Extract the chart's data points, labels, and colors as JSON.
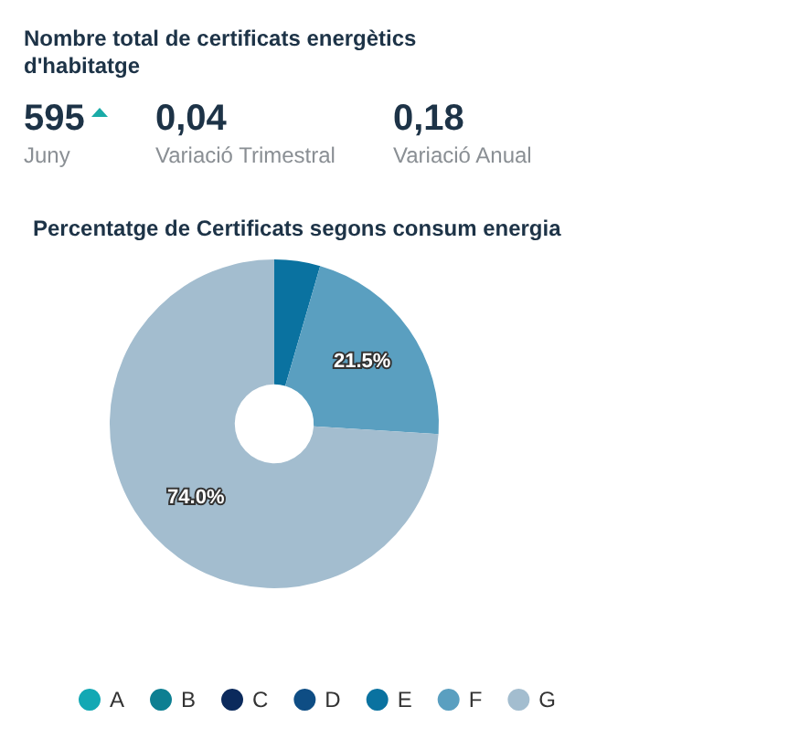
{
  "chart_data": [
    {
      "type": "other",
      "title": "Nombre total de certificats energètics d'habitatge",
      "annotations": [
        "595",
        "Juny",
        "0,04",
        "Variació Trimestral",
        "0,18",
        "Variació Anual"
      ]
    },
    {
      "type": "donut",
      "title": "Percentatge de Certificats segons consum energia",
      "categories": [
        "A",
        "B",
        "C",
        "D",
        "E",
        "F",
        "G"
      ],
      "values": [
        0,
        0,
        0,
        0,
        4.5,
        21.5,
        74.0
      ],
      "colors": [
        "#13a8b4",
        "#0d7f92",
        "#0b2a5c",
        "#0e4d84",
        "#0a72a0",
        "#5a9fc0",
        "#a3bdcf"
      ],
      "value_labels": [
        null,
        null,
        null,
        null,
        null,
        "21.5%",
        "74.0%"
      ],
      "legend": "bottom"
    }
  ]
}
